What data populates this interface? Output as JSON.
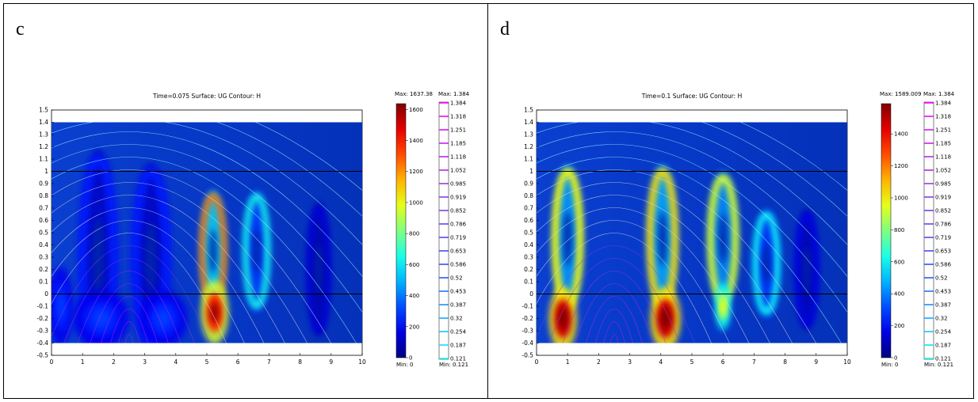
{
  "chart_data": [
    {
      "type": "heatmap",
      "panel_label": "c",
      "title": "Time=0.075   Surface: UG   Contour: H",
      "surface_colorbar": {
        "max_label": "Max: 1637.38",
        "min_label": "Min: 0",
        "ticks": [
          0,
          200,
          400,
          600,
          800,
          1000,
          1200,
          1400,
          1600
        ]
      },
      "contour_colorbar": {
        "max_label": "Max: 1.384",
        "min_label": "Min: 0.121",
        "levels": [
          "1.384",
          "1.318",
          "1.251",
          "1.185",
          "1.118",
          "1.052",
          "0.985",
          "0.919",
          "0.852",
          "0.786",
          "0.719",
          "0.653",
          "0.586",
          "0.52",
          "0.453",
          "0.387",
          "0.32",
          "0.254",
          "0.187",
          "0.121"
        ]
      },
      "xticks": [
        "0",
        "1",
        "2",
        "3",
        "4",
        "5",
        "6",
        "7",
        "8",
        "9",
        "10"
      ],
      "yticks": [
        "1.5",
        "1.4",
        "1.3",
        "1.2",
        "1.1",
        "1",
        "0.9",
        "0.8",
        "0.7",
        "0.6",
        "0.5",
        "0.4",
        "0.3",
        "0.2",
        "0.1",
        "0",
        "-0.1",
        "-0.2",
        "-0.3",
        "-0.4",
        "-0.5"
      ],
      "xlim": [
        0,
        10
      ],
      "ylim": [
        -0.5,
        1.5
      ],
      "domain": {
        "x": [
          0,
          10
        ],
        "y": [
          -0.4,
          1.4
        ]
      },
      "interfaces_y": [
        1,
        0
      ],
      "hotspots": [
        {
          "x": 5.2,
          "y": 0.35,
          "rx": 0.35,
          "ry": 0.45,
          "kind": "ring",
          "level": 1250
        },
        {
          "x": 5.25,
          "y": -0.15,
          "rx": 0.35,
          "ry": 0.2,
          "kind": "blob",
          "level": 1600
        },
        {
          "x": 6.6,
          "y": 0.35,
          "rx": 0.35,
          "ry": 0.45,
          "kind": "ring",
          "level": 650
        },
        {
          "x": 1.5,
          "y": 0.3,
          "rx": 0.5,
          "ry": 0.8,
          "kind": "ring",
          "level": 250
        },
        {
          "x": 3.2,
          "y": 0.3,
          "rx": 0.5,
          "ry": 0.7,
          "kind": "ring",
          "level": 250
        },
        {
          "x": 1.6,
          "y": -0.2,
          "rx": 0.7,
          "ry": 0.18,
          "kind": "blob",
          "level": 300
        },
        {
          "x": 3.6,
          "y": -0.2,
          "rx": 0.6,
          "ry": 0.18,
          "kind": "blob",
          "level": 300
        },
        {
          "x": 8.6,
          "y": 0.2,
          "rx": 0.3,
          "ry": 0.5,
          "kind": "ring",
          "level": 150
        },
        {
          "x": 0.3,
          "y": -0.1,
          "rx": 0.3,
          "ry": 0.25,
          "kind": "blob",
          "level": 300
        }
      ]
    },
    {
      "type": "heatmap",
      "panel_label": "d",
      "title": "Time=0.1   Surface: UG   Contour: H",
      "surface_colorbar": {
        "max_label": "Max: 1589.009",
        "min_label": "Min: 0",
        "ticks": [
          0,
          200,
          400,
          600,
          800,
          1000,
          1200,
          1400
        ]
      },
      "contour_colorbar": {
        "max_label": "Max: 1.384",
        "min_label": "Min: 0.121",
        "levels": [
          "1.384",
          "1.318",
          "1.251",
          "1.185",
          "1.118",
          "1.052",
          "0.985",
          "0.919",
          "0.852",
          "0.786",
          "0.719",
          "0.653",
          "0.586",
          "0.52",
          "0.453",
          "0.387",
          "0.32",
          "0.254",
          "0.187",
          "0.121"
        ]
      },
      "xticks": [
        "0",
        "1",
        "2",
        "3",
        "4",
        "5",
        "6",
        "7",
        "8",
        "9",
        "10"
      ],
      "yticks": [
        "1.5",
        "1.4",
        "1.3",
        "1.2",
        "1.1",
        "1",
        "0.9",
        "0.8",
        "0.7",
        "0.6",
        "0.5",
        "0.4",
        "0.3",
        "0.2",
        "0.1",
        "0",
        "-0.1",
        "-0.2",
        "-0.3",
        "-0.4",
        "-0.5"
      ],
      "xlim": [
        0,
        10
      ],
      "ylim": [
        -0.5,
        1.5
      ],
      "domain": {
        "x": [
          0,
          10
        ],
        "y": [
          -0.4,
          1.4
        ]
      },
      "interfaces_y": [
        1,
        0
      ],
      "hotspots": [
        {
          "x": 1.0,
          "y": 0.45,
          "rx": 0.4,
          "ry": 0.55,
          "kind": "ring",
          "level": 900
        },
        {
          "x": 0.85,
          "y": -0.2,
          "rx": 0.35,
          "ry": 0.2,
          "kind": "blob",
          "level": 1550
        },
        {
          "x": 4.05,
          "y": 0.45,
          "rx": 0.4,
          "ry": 0.55,
          "kind": "ring",
          "level": 950
        },
        {
          "x": 4.15,
          "y": -0.2,
          "rx": 0.38,
          "ry": 0.2,
          "kind": "blob",
          "level": 1550
        },
        {
          "x": 6.0,
          "y": 0.45,
          "rx": 0.4,
          "ry": 0.5,
          "kind": "ring",
          "level": 850
        },
        {
          "x": 6.0,
          "y": -0.1,
          "rx": 0.2,
          "ry": 0.15,
          "kind": "blob",
          "level": 900
        },
        {
          "x": 7.4,
          "y": 0.25,
          "rx": 0.35,
          "ry": 0.4,
          "kind": "ring",
          "level": 550
        },
        {
          "x": 8.7,
          "y": 0.2,
          "rx": 0.3,
          "ry": 0.45,
          "kind": "ring",
          "level": 150
        }
      ]
    }
  ]
}
